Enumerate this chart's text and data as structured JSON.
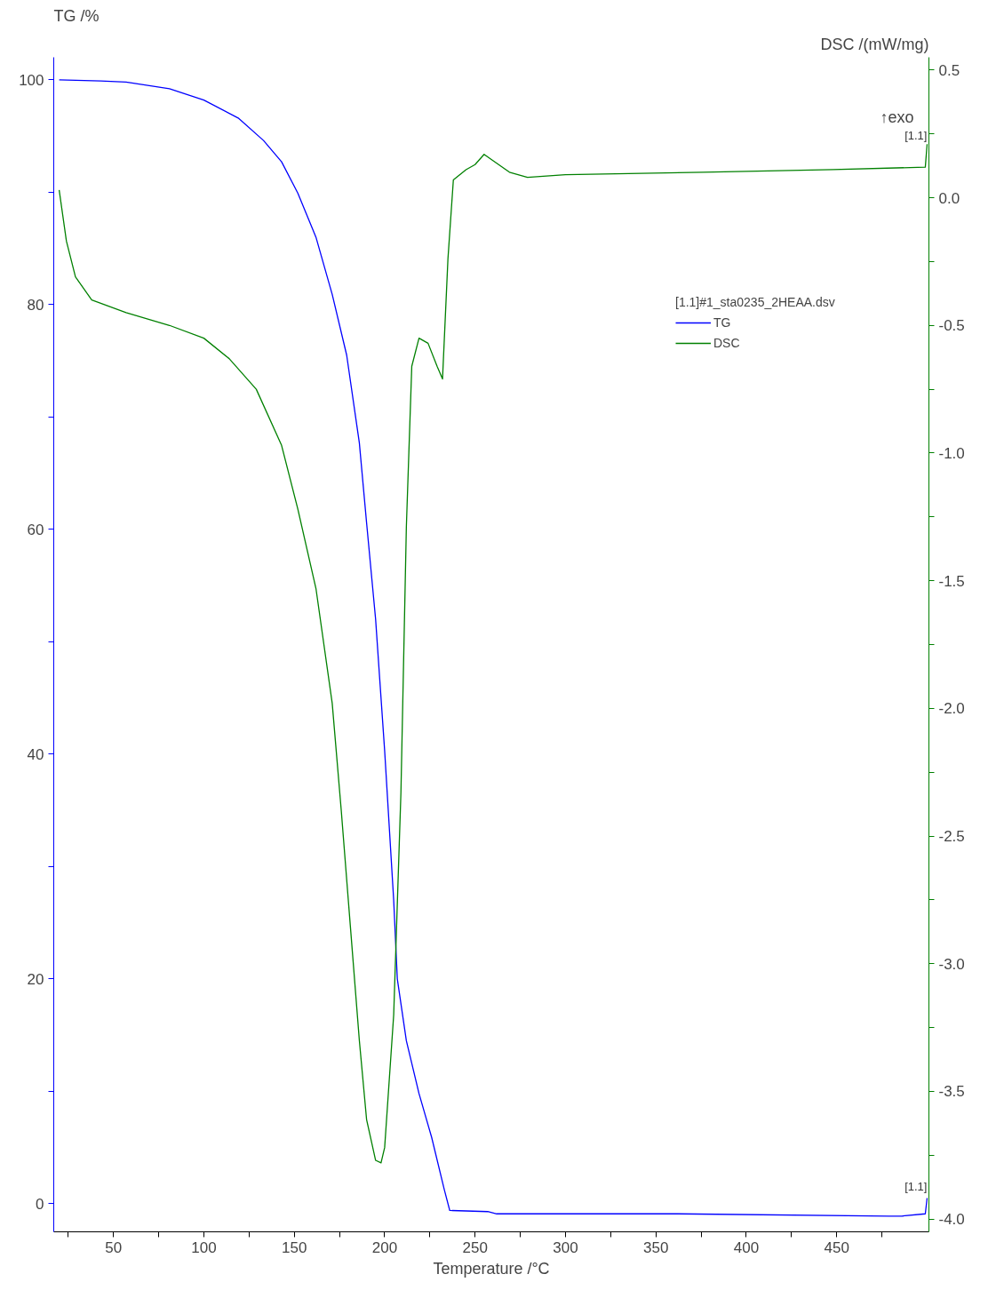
{
  "chart_data": {
    "type": "line",
    "xlabel": "Temperature /°C",
    "ylabel": "TG /%",
    "y2label": "DSC /(mW/mg)",
    "legend_title": "[1.1]#1_sta0235_2HEAA.dsv",
    "legend": "top right",
    "grid": false,
    "marker": "none",
    "line_style": "solid",
    "xlim": [
      17,
      501
    ],
    "xticks": [
      {
        "value": 25,
        "label": null
      },
      50,
      {
        "value": 75,
        "label": null
      },
      100,
      {
        "value": 125,
        "label": null
      },
      150,
      {
        "value": 175,
        "label": null
      },
      200,
      {
        "value": 225,
        "label": null
      },
      250,
      {
        "value": 275,
        "label": null
      },
      300,
      {
        "value": 325,
        "label": null
      },
      350,
      {
        "value": 375,
        "label": null
      },
      400,
      {
        "value": 425,
        "label": null
      },
      450,
      {
        "value": 475,
        "label": null
      }
    ],
    "ylim": [
      -2.5,
      102
    ],
    "yticks": [
      0,
      {
        "value": 10,
        "label": null
      },
      20,
      {
        "value": 30,
        "label": null
      },
      40,
      {
        "value": 50,
        "label": null
      },
      60,
      {
        "value": 70,
        "label": null
      },
      80,
      {
        "value": 90,
        "label": null
      },
      100
    ],
    "y2lim": [
      -4.05,
      0.55
    ],
    "y2ticks": [
      {
        "value": -4.0,
        "label": "-4.0"
      },
      {
        "value": -3.75,
        "label": null
      },
      {
        "value": -3.5,
        "label": "-3.5"
      },
      {
        "value": -3.25,
        "label": null
      },
      {
        "value": -3.0,
        "label": "-3.0"
      },
      {
        "value": -2.75,
        "label": null
      },
      {
        "value": -2.5,
        "label": "-2.5"
      },
      {
        "value": -2.25,
        "label": null
      },
      {
        "value": -2.0,
        "label": "-2.0"
      },
      {
        "value": -1.75,
        "label": null
      },
      {
        "value": -1.5,
        "label": "-1.5"
      },
      {
        "value": -1.25,
        "label": null
      },
      {
        "value": -1.0,
        "label": "-1.0"
      },
      {
        "value": -0.75,
        "label": null
      },
      {
        "value": -0.5,
        "label": "-0.5"
      },
      {
        "value": -0.25,
        "label": null
      },
      {
        "value": 0.0,
        "label": "0.0"
      },
      {
        "value": 0.25,
        "label": null
      },
      {
        "value": 0.5,
        "label": "0.5"
      }
    ],
    "annotations": [
      "↑exo",
      {
        "text": "[1.1]",
        "x": 500,
        "y": 94
      },
      {
        "text": "[1.1]",
        "x": 500,
        "y": 0.5
      }
    ],
    "series": [
      {
        "name": "TG",
        "color": "#0000ff",
        "x": [
          20,
          43,
          57,
          81,
          100,
          119,
          133,
          143,
          152,
          162,
          171,
          179,
          186,
          190,
          195,
          200,
          205,
          207,
          212,
          219,
          226,
          233,
          236,
          257,
          262,
          362,
          479,
          486,
          499,
          500
        ],
        "values": [
          100,
          99.9,
          99.8,
          99.2,
          98.2,
          96.6,
          94.6,
          92.7,
          89.9,
          86,
          80.9,
          75.5,
          67.7,
          60.6,
          52,
          40.3,
          27,
          20,
          14.5,
          9.8,
          5.9,
          1.25,
          -0.6,
          -0.7,
          -0.9,
          -0.9,
          -1.1,
          -1.1,
          -0.9,
          0.5
        ]
      },
      {
        "name": "DSC",
        "color": "#008000",
        "axis": "y2",
        "x": [
          20,
          24,
          29,
          38,
          57,
          81,
          100,
          114,
          129,
          143,
          152,
          162,
          171,
          176,
          181,
          186,
          190,
          195,
          198,
          200,
          205,
          209,
          212,
          215,
          219,
          224,
          229,
          232,
          235,
          238,
          245,
          250,
          255,
          259,
          269,
          279,
          300,
          376,
          448,
          499,
          500
        ],
        "values": [
          0.03,
          -0.17,
          -0.31,
          -0.4,
          -0.45,
          -0.5,
          -0.55,
          -0.63,
          -0.75,
          -0.97,
          -1.22,
          -1.53,
          -1.98,
          -2.4,
          -2.85,
          -3.3,
          -3.61,
          -3.77,
          -3.78,
          -3.72,
          -3.2,
          -2.33,
          -1.29,
          -0.66,
          -0.55,
          -0.57,
          -0.66,
          -0.71,
          -0.24,
          0.07,
          0.11,
          0.13,
          0.17,
          0.15,
          0.1,
          0.08,
          0.09,
          0.1,
          0.11,
          0.12,
          0.21
        ]
      }
    ]
  }
}
